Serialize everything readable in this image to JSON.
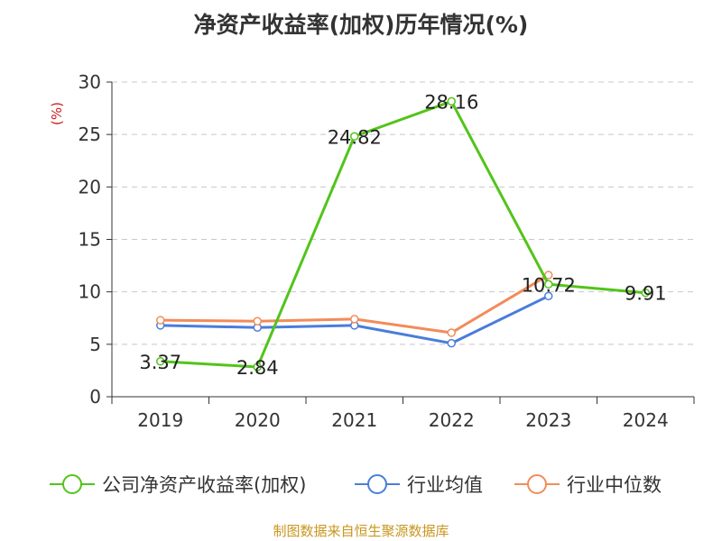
{
  "chart_data": {
    "type": "line",
    "title": "净资产收益率(加权)历年情况(%)",
    "ylabel": "(%)",
    "xlabel": "",
    "categories": [
      "2019",
      "2020",
      "2021",
      "2022",
      "2023",
      "2024"
    ],
    "ylim": [
      0,
      30
    ],
    "yticks": [
      0,
      5,
      10,
      15,
      20,
      25,
      30
    ],
    "grid": true,
    "legend_position": "bottom",
    "series": [
      {
        "name": "公司净资产收益率(加权)",
        "color": "#52c41a",
        "values": [
          3.37,
          2.84,
          24.82,
          28.16,
          10.72,
          9.91
        ],
        "labels": [
          "3.37",
          "2.84",
          "24.82",
          "28.16",
          "10.72",
          "9.91"
        ]
      },
      {
        "name": "行业均值",
        "color": "#4a7ddb",
        "values": [
          6.8,
          6.6,
          6.8,
          5.1,
          9.6,
          null
        ]
      },
      {
        "name": "行业中位数",
        "color": "#f28c5a",
        "values": [
          7.3,
          7.2,
          7.4,
          6.1,
          11.6,
          null
        ]
      }
    ]
  },
  "source": "制图数据来自恒生聚源数据库"
}
